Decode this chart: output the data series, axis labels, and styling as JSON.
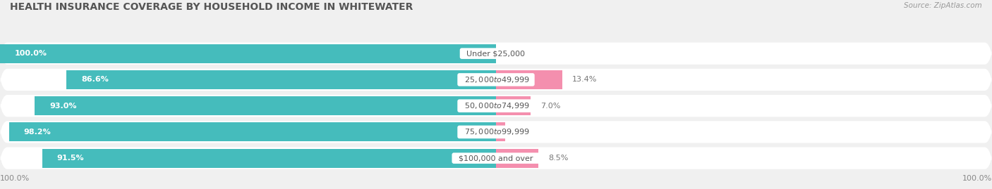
{
  "title": "HEALTH INSURANCE COVERAGE BY HOUSEHOLD INCOME IN WHITEWATER",
  "source": "Source: ZipAtlas.com",
  "categories": [
    "Under $25,000",
    "$25,000 to $49,999",
    "$50,000 to $74,999",
    "$75,000 to $99,999",
    "$100,000 and over"
  ],
  "with_coverage": [
    100.0,
    86.6,
    93.0,
    98.2,
    91.5
  ],
  "without_coverage": [
    0.0,
    13.4,
    7.0,
    1.8,
    8.5
  ],
  "coverage_color": "#45BCBC",
  "no_coverage_color": "#F48FAE",
  "background_color": "#f0f0f0",
  "row_bg_color": "#e2e2e2",
  "title_fontsize": 10,
  "label_fontsize": 8,
  "bar_label_fontsize": 8,
  "axis_label_fontsize": 8,
  "legend_fontsize": 8.5,
  "x_left_label": "100.0%",
  "x_right_label": "100.0%"
}
